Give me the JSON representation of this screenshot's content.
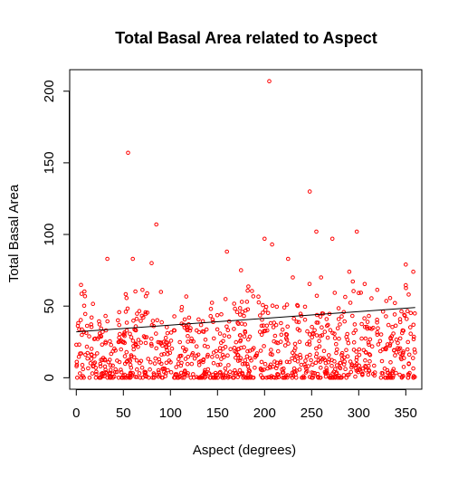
{
  "chart_data": {
    "type": "scatter",
    "title": "Total Basal Area related to Aspect",
    "xlabel": "Aspect (degrees)",
    "ylabel": "Total Basal Area",
    "xlim": [
      -7,
      367
    ],
    "ylim": [
      -8,
      215
    ],
    "xticks": [
      0,
      50,
      100,
      150,
      200,
      250,
      300,
      350
    ],
    "yticks": [
      0,
      50,
      100,
      150,
      200
    ],
    "grid": false,
    "legend": "none",
    "point_color": "#ff0000",
    "line_color": "#000000",
    "trend_line": {
      "x": [
        0,
        360
      ],
      "y": [
        32,
        49
      ]
    },
    "outliers": [
      {
        "x": 205,
        "y": 207
      },
      {
        "x": 55,
        "y": 157
      },
      {
        "x": 248,
        "y": 130
      },
      {
        "x": 85,
        "y": 107
      },
      {
        "x": 255,
        "y": 102
      },
      {
        "x": 298,
        "y": 102
      },
      {
        "x": 200,
        "y": 97
      },
      {
        "x": 208,
        "y": 93
      },
      {
        "x": 272,
        "y": 97
      },
      {
        "x": 160,
        "y": 88
      },
      {
        "x": 33,
        "y": 83
      },
      {
        "x": 60,
        "y": 83
      },
      {
        "x": 225,
        "y": 83
      },
      {
        "x": 80,
        "y": 80
      },
      {
        "x": 350,
        "y": 79
      },
      {
        "x": 358,
        "y": 74
      },
      {
        "x": 290,
        "y": 74
      },
      {
        "x": 260,
        "y": 70
      },
      {
        "x": 175,
        "y": 75
      },
      {
        "x": 230,
        "y": 70
      }
    ],
    "cloud": {
      "n": 1000,
      "x_range": [
        0,
        360
      ],
      "y_max": 65,
      "seed": 7
    }
  }
}
